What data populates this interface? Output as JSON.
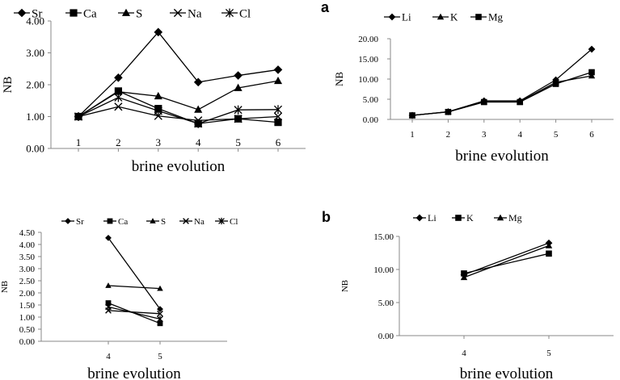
{
  "chart_data": [
    {
      "id": "top-left",
      "type": "line",
      "panel_label": "",
      "title": "",
      "xlabel": "brine evolution",
      "ylabel": "NB",
      "x": [
        1,
        2,
        3,
        4,
        5,
        6
      ],
      "ylim": [
        0,
        4
      ],
      "yticks": [
        "0.00",
        "1.00",
        "2.00",
        "3.00",
        "4.00"
      ],
      "grid": false,
      "legend": "top",
      "series": [
        {
          "name": "Sr",
          "marker": "diamond",
          "values": [
            1.0,
            2.22,
            3.65,
            2.08,
            2.29,
            2.47
          ]
        },
        {
          "name": "Ca",
          "marker": "square",
          "values": [
            1.0,
            1.8,
            1.25,
            0.78,
            0.93,
            0.82
          ]
        },
        {
          "name": "S",
          "marker": "triangle",
          "values": [
            1.0,
            1.78,
            1.64,
            1.22,
            1.9,
            2.12
          ]
        },
        {
          "name": "Na",
          "marker": "x",
          "values": [
            1.0,
            1.31,
            1.02,
            0.88,
            0.93,
            1.0
          ]
        },
        {
          "name": "Cl",
          "marker": "star",
          "values": [
            1.0,
            1.6,
            1.18,
            0.78,
            1.21,
            1.22
          ]
        }
      ]
    },
    {
      "id": "top-right",
      "type": "line",
      "panel_label": "a",
      "title": "",
      "xlabel": "brine evolution",
      "ylabel": "NB",
      "x": [
        1,
        2,
        3,
        4,
        5,
        6
      ],
      "ylim": [
        0,
        20
      ],
      "yticks": [
        "0.00",
        "5.00",
        "10.00",
        "15.00",
        "20.00"
      ],
      "grid": false,
      "legend": "top",
      "series": [
        {
          "name": "Li",
          "marker": "diamond",
          "values": [
            1.0,
            1.9,
            4.6,
            4.6,
            9.8,
            17.4
          ]
        },
        {
          "name": "K",
          "marker": "triangle",
          "values": [
            1.0,
            1.9,
            4.4,
            4.4,
            9.2,
            10.8
          ]
        },
        {
          "name": "Mg",
          "marker": "square",
          "values": [
            1.0,
            1.85,
            4.3,
            4.3,
            8.8,
            11.7
          ]
        }
      ]
    },
    {
      "id": "bottom-left",
      "type": "line",
      "panel_label": "",
      "title": "",
      "xlabel": "brine evolution",
      "ylabel": "NB",
      "x": [
        4,
        5
      ],
      "ylim": [
        0,
        4.5
      ],
      "yticks": [
        "0.00",
        "0.50",
        "1.00",
        "1.50",
        "2.00",
        "2.50",
        "3.00",
        "3.50",
        "4.00",
        "4.50"
      ],
      "grid": false,
      "legend": "top",
      "series": [
        {
          "name": "Sr",
          "marker": "diamond",
          "values": [
            4.27,
            1.33
          ]
        },
        {
          "name": "Ca",
          "marker": "square",
          "values": [
            1.58,
            0.74
          ]
        },
        {
          "name": "S",
          "marker": "triangle",
          "values": [
            2.3,
            2.18
          ]
        },
        {
          "name": "Na",
          "marker": "x",
          "values": [
            1.27,
            1.14
          ]
        },
        {
          "name": "Cl",
          "marker": "star",
          "values": [
            1.42,
            0.92
          ]
        }
      ]
    },
    {
      "id": "bottom-right",
      "type": "line",
      "panel_label": "b",
      "title": "",
      "xlabel": "brine evolution",
      "ylabel": "NB",
      "x": [
        4,
        5
      ],
      "ylim": [
        0,
        15
      ],
      "yticks": [
        "0.00",
        "5.00",
        "10.00",
        "15.00"
      ],
      "grid": false,
      "legend": "top",
      "series": [
        {
          "name": "Li",
          "marker": "diamond",
          "values": [
            9.2,
            14.0
          ]
        },
        {
          "name": "K",
          "marker": "square",
          "values": [
            9.4,
            12.4
          ]
        },
        {
          "name": "Mg",
          "marker": "triangle",
          "values": [
            8.8,
            13.6
          ]
        }
      ]
    }
  ]
}
